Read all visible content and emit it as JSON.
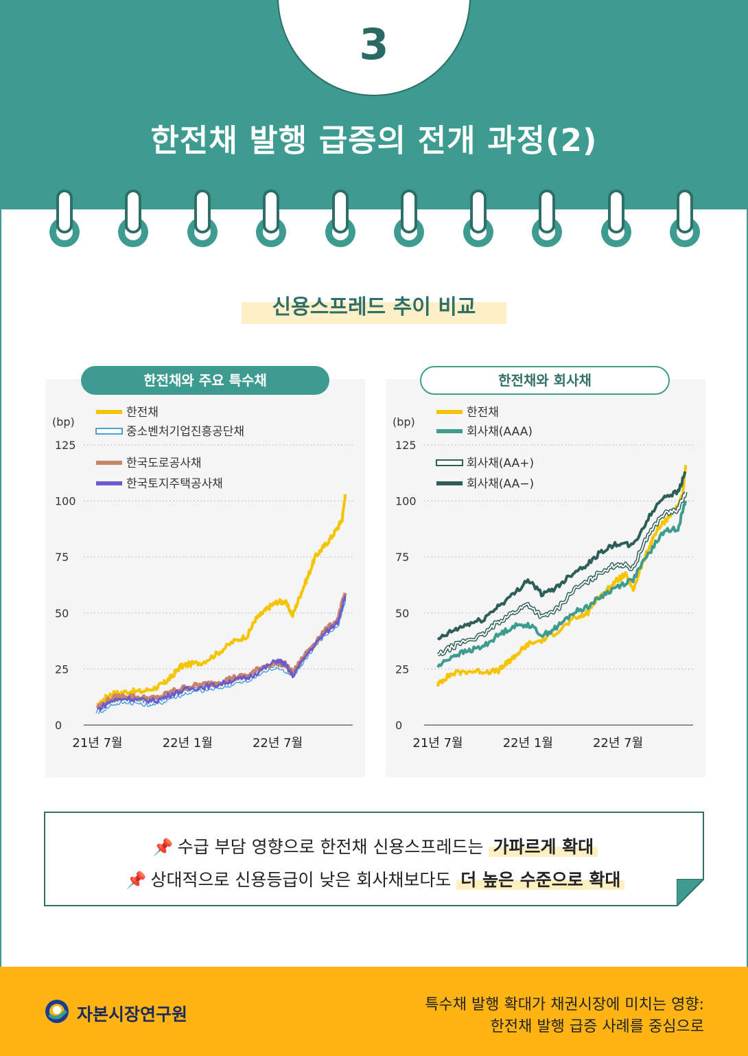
{
  "header": {
    "number": "3",
    "title": "한전채 발행 급증의 전개 과정(2)"
  },
  "section": {
    "title": "신용스프레드 추이 비교"
  },
  "summary": {
    "line1_prefix": "수급 부담 영향으로 한전채 신용스프레드는 ",
    "line1_emphasis": "가파르게 확대",
    "line2_prefix": "상대적으로 신용등급이 낮은 회사채보다도 ",
    "line2_emphasis": "더 높은 수준으로 확대",
    "pin_icon": "pushpin-icon"
  },
  "footer": {
    "org_name": "자본시장연구원",
    "report_title_line1": "특수채 발행 확대가  채권시장에 미치는 영향:",
    "report_title_line2": "한전채 발행 급증 사례를 중심으로"
  },
  "colors": {
    "teal": "#3d9b8f",
    "dark_teal": "#2d6e68",
    "gold": "#fdb414",
    "kepco": "#f5c400",
    "sme": "#4a9fd8",
    "road": "#c8836a",
    "land": "#6a5bd0",
    "aaa": "#3d9b8f",
    "aa_plus": "#2d5e5a",
    "aa_minus": "#2d5e5a"
  },
  "chart_data": [
    {
      "type": "line",
      "title": "한전채와 주요 특수채",
      "unit": "(bp)",
      "yticks": [
        "0",
        "25",
        "50",
        "75",
        "100",
        "125"
      ],
      "ylim": [
        0,
        125
      ],
      "xticks": [
        "21년 7월",
        "22년 1월",
        "22년 7월"
      ],
      "xtick_positions": [
        0,
        6,
        12
      ],
      "xlim": [
        0,
        17
      ],
      "legend_position": "top-left",
      "series": [
        {
          "name": "한전채",
          "x": [
            0,
            0.5,
            1,
            2,
            3,
            4,
            4.5,
            5,
            5.5,
            6,
            7,
            8,
            9,
            10,
            10.5,
            11,
            11.5,
            12,
            12.5,
            13,
            13.5,
            14,
            14.5,
            15,
            15.5,
            16,
            16.3,
            16.5
          ],
          "y": [
            8,
            12,
            14,
            15,
            15,
            17,
            19,
            22,
            26,
            27,
            28,
            32,
            37,
            40,
            47,
            50,
            53,
            55,
            55,
            49,
            58,
            66,
            75,
            79,
            83,
            88,
            92,
            103
          ]
        },
        {
          "name": "중소벤처기업진흥공단채",
          "x": [
            0,
            1,
            2,
            3,
            4,
            5,
            6,
            7,
            8,
            9,
            10,
            11,
            12,
            12.5,
            13,
            14,
            15,
            16,
            16.5
          ],
          "y": [
            6,
            10,
            11,
            10,
            10,
            13,
            15,
            16,
            17,
            19,
            20,
            24,
            27,
            25,
            22,
            32,
            40,
            45,
            57
          ]
        },
        {
          "name": "한국도로공사채",
          "x": [
            0,
            1,
            2,
            3,
            4,
            5,
            6,
            7,
            8,
            9,
            10,
            11,
            12,
            12.5,
            13,
            14,
            15,
            16,
            16.5
          ],
          "y": [
            8,
            12,
            13,
            12,
            12,
            15,
            17,
            18,
            19,
            21,
            22,
            26,
            28,
            27,
            23,
            33,
            41,
            47,
            59
          ]
        },
        {
          "name": "한국토지주택공사채",
          "x": [
            0,
            1,
            2,
            3,
            4,
            5,
            6,
            7,
            8,
            9,
            10,
            11,
            12,
            12.5,
            13,
            14,
            15,
            16,
            16.5
          ],
          "y": [
            7,
            11,
            12,
            11,
            11,
            14,
            16,
            17,
            18,
            20,
            21,
            25,
            29,
            27,
            22,
            32,
            40,
            46,
            58
          ]
        }
      ]
    },
    {
      "type": "line",
      "title": "한전채와 회사채",
      "unit": "(bp)",
      "yticks": [
        "0",
        "25",
        "50",
        "75",
        "100",
        "125"
      ],
      "ylim": [
        0,
        125
      ],
      "xticks": [
        "21년 7월",
        "22년 1월",
        "22년 7월"
      ],
      "xtick_positions": [
        0,
        6,
        12
      ],
      "xlim": [
        0,
        17
      ],
      "legend_position": "top-left",
      "series": [
        {
          "name": "한전채",
          "x": [
            0,
            0.5,
            1,
            2,
            3,
            4,
            4.5,
            5,
            5.5,
            6,
            7,
            8,
            9,
            10,
            10.5,
            11,
            11.5,
            12,
            12.5,
            13,
            13.5,
            14,
            14.5,
            15,
            15.5,
            16,
            16.3,
            16.5
          ],
          "y": [
            18,
            21,
            23,
            24,
            24,
            24,
            27,
            30,
            33,
            36,
            38,
            42,
            47,
            50,
            56,
            58,
            62,
            65,
            67,
            60,
            70,
            78,
            86,
            90,
            94,
            98,
            102,
            116
          ]
        },
        {
          "name": "회사채(AAA)",
          "x": [
            0,
            1,
            2,
            3,
            4,
            5,
            6,
            7,
            8,
            9,
            10,
            11,
            12,
            13,
            14,
            15,
            16,
            16.5
          ],
          "y": [
            26,
            31,
            33,
            35,
            40,
            44,
            45,
            40,
            44,
            50,
            53,
            58,
            62,
            65,
            76,
            86,
            88,
            100
          ]
        },
        {
          "name": "회사채(AA+)",
          "x": [
            0,
            1,
            2,
            3,
            4,
            5,
            6,
            7,
            8,
            9,
            10,
            11,
            12,
            13,
            14,
            15,
            16,
            16.5
          ],
          "y": [
            31,
            35,
            38,
            40,
            46,
            50,
            54,
            48,
            52,
            60,
            64,
            69,
            72,
            70,
            85,
            94,
            96,
            104
          ]
        },
        {
          "name": "회사채(AA−)",
          "x": [
            0,
            1,
            2,
            3,
            4,
            5,
            6,
            7,
            8,
            9,
            10,
            11,
            12,
            13,
            14,
            15,
            16,
            16.5
          ],
          "y": [
            38,
            42,
            45,
            47,
            53,
            58,
            65,
            58,
            62,
            68,
            72,
            78,
            81,
            80,
            92,
            102,
            104,
            113
          ]
        }
      ]
    }
  ]
}
